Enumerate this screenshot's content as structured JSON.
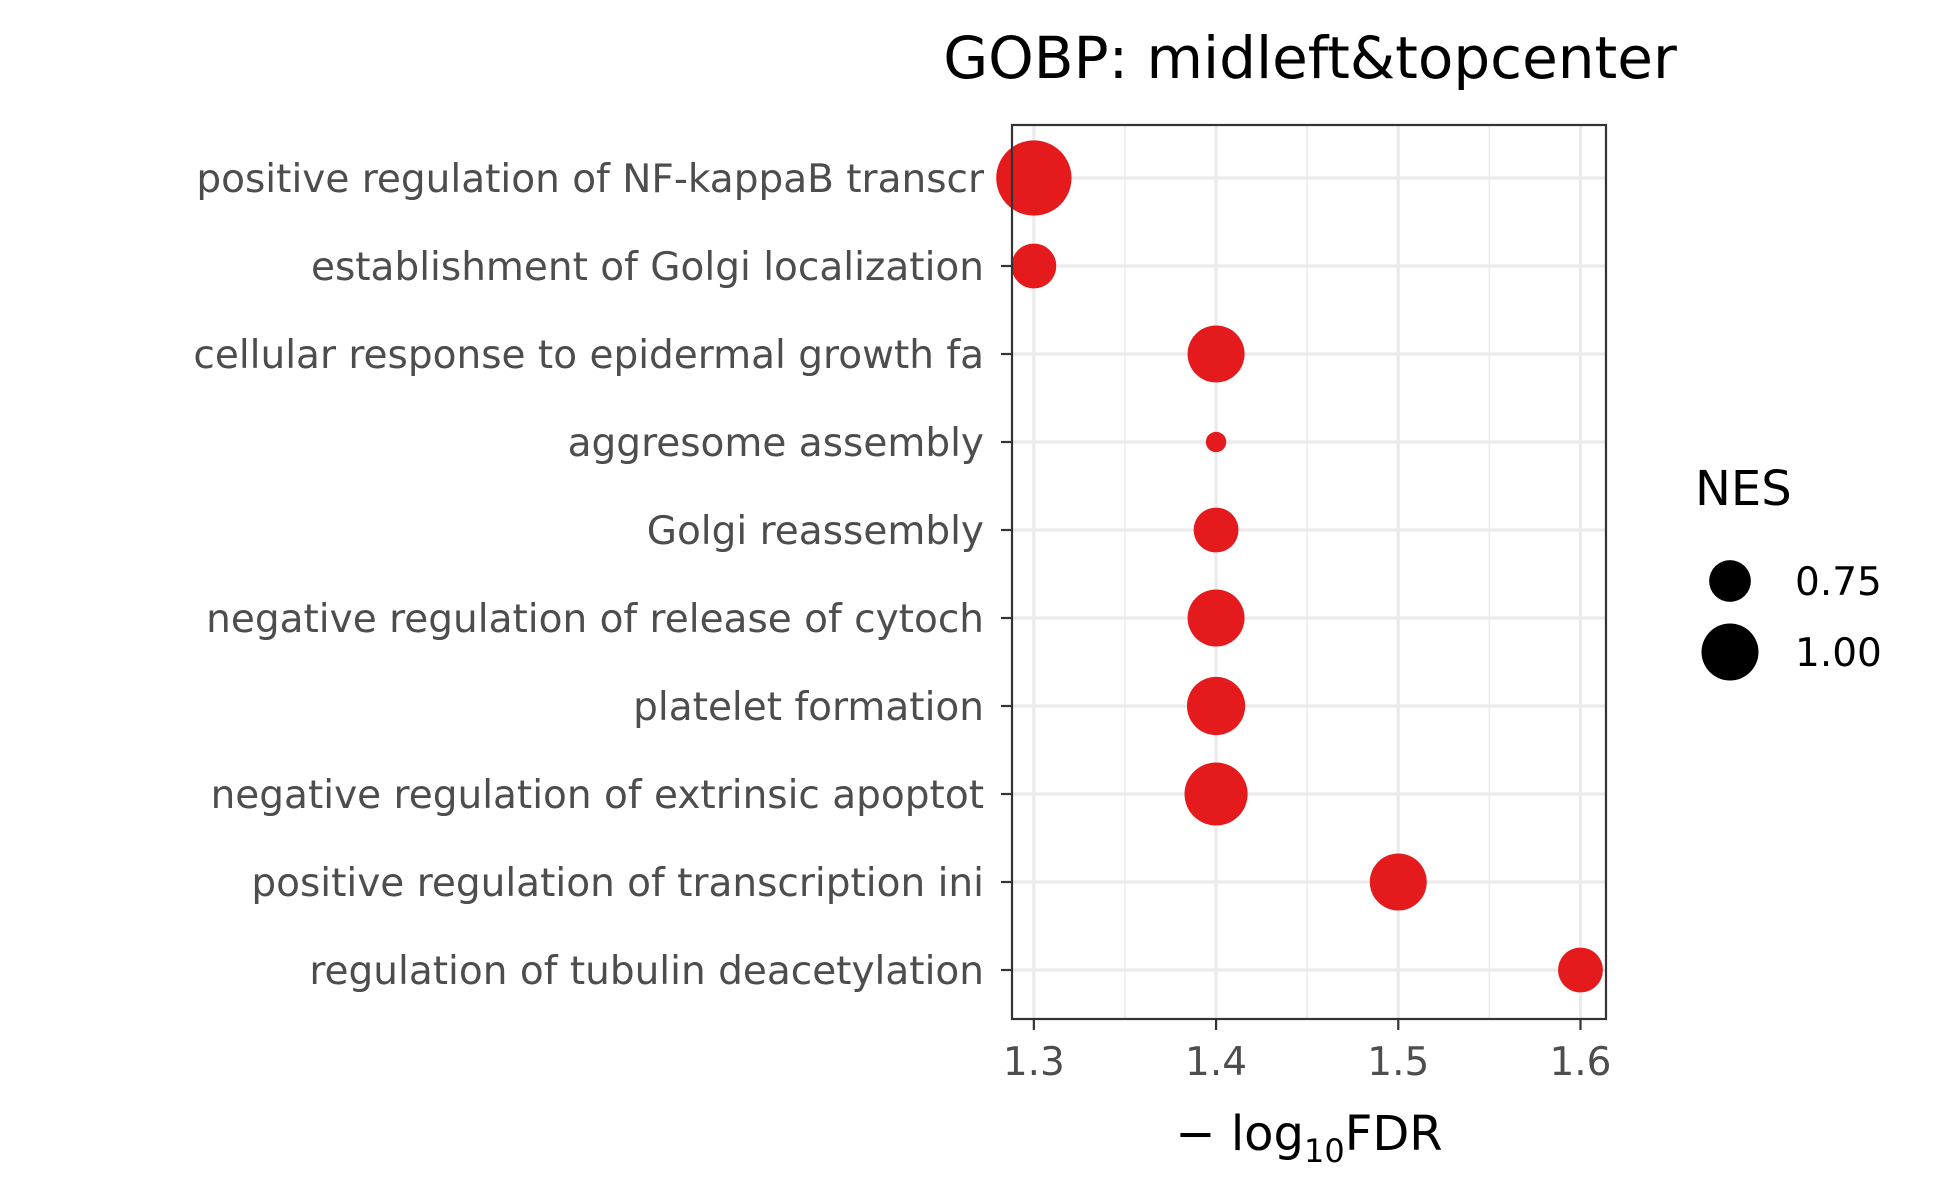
{
  "chart_data": {
    "type": "scatter",
    "title": "GOBP: midleft&topcenter",
    "xlabel_prefix": "− log",
    "xlabel_sub": "10",
    "xlabel_suffix": "FDR",
    "xlim": [
      1.288,
      1.614
    ],
    "x_ticks": [
      1.3,
      1.4,
      1.5,
      1.6
    ],
    "x_tick_labels": [
      "1.3",
      "1.4",
      "1.5",
      "1.6"
    ],
    "grid": true,
    "marker_color": "#e41a1c",
    "categories": [
      "positive regulation of NF-kappaB transcr",
      "establishment of Golgi localization",
      "cellular response to epidermal growth fa",
      "aggresome assembly",
      "Golgi reassembly",
      "negative regulation of release of cytoch",
      "platelet formation",
      "negative regulation of extrinsic apoptot",
      "positive regulation of transcription ini",
      "regulation of tubulin deacetylation"
    ],
    "points": [
      {
        "term": "positive regulation of NF-kappaB transcr",
        "x": 1.3,
        "nes": 1.3
      },
      {
        "term": "establishment of Golgi localization",
        "x": 1.3,
        "nes": 0.8
      },
      {
        "term": "cellular response to epidermal growth fa",
        "x": 1.4,
        "nes": 1.0
      },
      {
        "term": "aggresome assembly",
        "x": 1.4,
        "nes": 0.4
      },
      {
        "term": "Golgi reassembly",
        "x": 1.4,
        "nes": 0.8
      },
      {
        "term": "negative regulation of release of cytoch",
        "x": 1.4,
        "nes": 1.0
      },
      {
        "term": "platelet formation",
        "x": 1.4,
        "nes": 1.02
      },
      {
        "term": "negative regulation of extrinsic apoptot",
        "x": 1.4,
        "nes": 1.1
      },
      {
        "term": "positive regulation of transcription ini",
        "x": 1.5,
        "nes": 1.0
      },
      {
        "term": "regulation of tubulin deacetylation",
        "x": 1.6,
        "nes": 0.8
      }
    ],
    "legend": {
      "title": "NES",
      "placement": "right",
      "entries": [
        {
          "label": "0.75",
          "nes": 0.75
        },
        {
          "label": "1.00",
          "nes": 1.0
        }
      ]
    }
  }
}
